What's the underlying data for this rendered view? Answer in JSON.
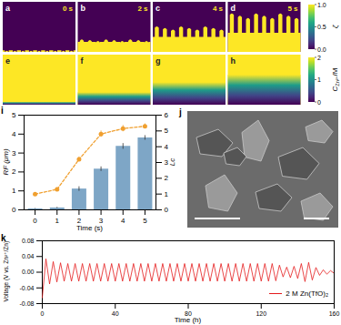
{
  "panels": {
    "phase_field": {
      "letters": [
        "a",
        "b",
        "c",
        "d"
      ],
      "times": [
        "0 s",
        "2 s",
        "4 s",
        "5 s"
      ]
    },
    "concentration": {
      "letters": [
        "e",
        "f",
        "g",
        "h"
      ]
    },
    "colorbars": [
      {
        "title": "ζ",
        "lim": [
          0,
          1
        ],
        "ticks": [
          {
            "value": 0,
            "label": "0.0"
          },
          {
            "value": 0.5,
            "label": "0.5"
          },
          {
            "value": 1,
            "label": "1.0"
          }
        ]
      },
      {
        "title": "C",
        "subscript": "Zn²⁺",
        "suffix": "/M",
        "lim": [
          0,
          2
        ],
        "ticks": [
          0,
          1,
          2
        ]
      }
    ],
    "sem_image": {
      "letter": "j"
    }
  },
  "chart_data": [
    {
      "panel_label": "i",
      "type": "bar",
      "x": [
        0,
        1,
        2,
        3,
        4,
        5
      ],
      "xlim": [
        -0.5,
        5.5
      ],
      "xticks": [
        0,
        1,
        2,
        3,
        4,
        5
      ],
      "xlabel": "Time (s)",
      "ylabel": "RF (μm)",
      "ylim": [
        0,
        5
      ],
      "yticks": [
        0,
        1,
        2,
        3,
        4,
        5
      ],
      "y2label": "Lc",
      "y2lim": [
        0,
        6
      ],
      "y2ticks": [
        0,
        1,
        2,
        3,
        4,
        5,
        6
      ],
      "series": [
        {
          "name": "RF",
          "type": "bar",
          "color": "#7ea6c6",
          "values": [
            0.05,
            0.1,
            1.1,
            2.15,
            3.35,
            3.8
          ],
          "errors": [
            0.02,
            0.03,
            0.12,
            0.12,
            0.15,
            0.12
          ]
        },
        {
          "name": "Lc",
          "type": "line",
          "axis": "y2",
          "color": "#f0a030",
          "line_style": "dashed",
          "marker": "circle",
          "values": [
            1.0,
            1.3,
            3.2,
            4.8,
            5.15,
            5.3
          ],
          "errors": [
            0.05,
            0.1,
            0.15,
            0.2,
            0.2,
            0.15
          ]
        }
      ]
    },
    {
      "panel_label": "k",
      "type": "line",
      "xlabel": "Time (h)",
      "ylabel": "Voltage (V vs. Zn²⁺/Zn)",
      "x": [
        0,
        2,
        4,
        6,
        8,
        10,
        12,
        14,
        16,
        18,
        20,
        22,
        24,
        26,
        28,
        30,
        32,
        34,
        36,
        38,
        40,
        42,
        44,
        46,
        48,
        50,
        52,
        54,
        56,
        58,
        60,
        62,
        64,
        66,
        68,
        70,
        72,
        74,
        76,
        78,
        80,
        82,
        84,
        86,
        88,
        90,
        92,
        94,
        96,
        98,
        100,
        102,
        104,
        106,
        108,
        110,
        112,
        114,
        116,
        118,
        120,
        122,
        124,
        126,
        128,
        130,
        132,
        134,
        136,
        138,
        140,
        142,
        144,
        146,
        148,
        150,
        152,
        154,
        156,
        158,
        160
      ],
      "xlim": [
        0,
        160
      ],
      "xticks": [
        0,
        40,
        80,
        120,
        160
      ],
      "ylim": [
        -0.08,
        0.08
      ],
      "yticks": [
        {
          "value": -0.08,
          "label": "-0.08"
        },
        {
          "value": -0.04,
          "label": "-0.04"
        },
        {
          "value": 0,
          "label": "0.00"
        },
        {
          "value": 0.04,
          "label": "0.04"
        },
        {
          "value": 0.08,
          "label": "0.08"
        }
      ],
      "legend": "bottom-right",
      "series": [
        {
          "name": "2 M Zn(TfO)₂",
          "color": "#e41a1c",
          "values": [
            -0.065,
            0.034,
            -0.03,
            0.027,
            -0.025,
            0.024,
            -0.023,
            0.022,
            -0.023,
            0.022,
            -0.023,
            0.022,
            -0.023,
            0.022,
            -0.023,
            0.022,
            -0.023,
            0.022,
            -0.023,
            0.022,
            -0.023,
            0.022,
            -0.023,
            0.022,
            -0.023,
            0.022,
            -0.023,
            0.022,
            -0.023,
            0.022,
            -0.023,
            0.022,
            -0.023,
            0.022,
            -0.023,
            0.022,
            -0.023,
            0.022,
            -0.023,
            0.022,
            -0.023,
            0.022,
            -0.023,
            0.022,
            -0.023,
            0.022,
            -0.023,
            0.022,
            -0.023,
            0.022,
            -0.023,
            0.022,
            -0.023,
            0.022,
            -0.023,
            0.022,
            -0.023,
            0.022,
            -0.023,
            0.022,
            -0.023,
            0.022,
            -0.023,
            0.022,
            -0.022,
            0.018,
            -0.012,
            0.013,
            -0.014,
            0.015,
            -0.016,
            0.022,
            -0.024,
            0.025,
            -0.02,
            0.012,
            -0.008,
            0.006,
            -0.005,
            0.004,
            -0.003
          ]
        }
      ]
    }
  ]
}
